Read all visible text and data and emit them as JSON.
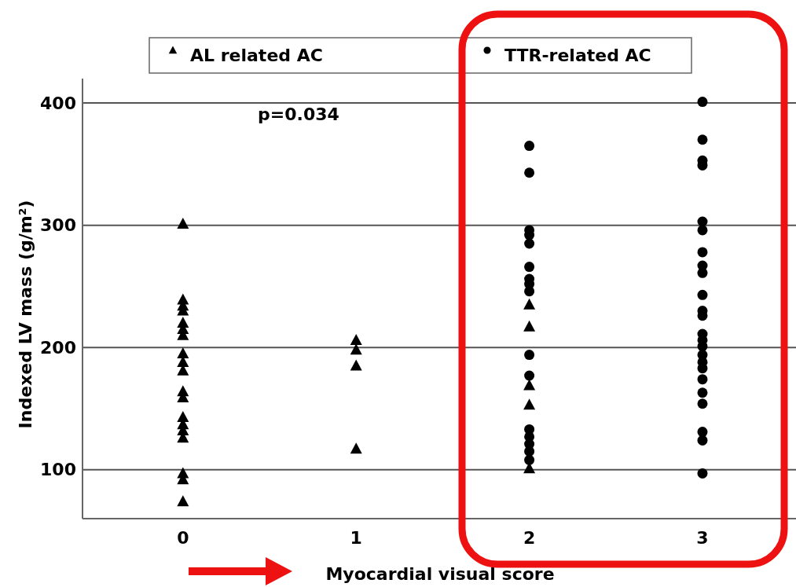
{
  "chart_data": {
    "type": "scatter",
    "xlabel": "Myocardial visual score",
    "ylabel": "Indexed LV mass (g/m²)",
    "xlim": [
      -0.58,
      3.54
    ],
    "xticks": [
      0,
      1,
      2,
      3
    ],
    "ylim": [
      60,
      420
    ],
    "yticks": [
      100,
      200,
      300,
      400
    ],
    "grid": "y",
    "legend": "top",
    "annotations": [
      "p=0.034"
    ],
    "series": [
      {
        "name": "AL related AC",
        "color": "#000000",
        "marker": "triangle",
        "x": [
          0,
          0,
          0,
          0,
          0,
          0,
          0,
          0,
          0,
          0,
          0,
          0,
          0,
          0,
          0,
          0,
          0,
          0,
          0,
          1,
          1,
          1,
          1,
          2,
          2,
          2,
          2,
          2
        ],
        "values": [
          301,
          239,
          234,
          230,
          220,
          215,
          210,
          195,
          188,
          181,
          164,
          159,
          143,
          137,
          132,
          126,
          97,
          92,
          74,
          206,
          198,
          185,
          117,
          235,
          217,
          169,
          153,
          101
        ]
      },
      {
        "name": "TTR-related AC",
        "color": "#000000",
        "marker": "circle",
        "x": [
          2,
          2,
          2,
          2,
          2,
          2,
          2,
          2,
          2,
          2,
          2,
          2,
          2,
          2,
          2,
          2,
          3,
          3,
          3,
          3,
          3,
          3,
          3,
          3,
          3,
          3,
          3,
          3,
          3,
          3,
          3,
          3,
          3,
          3,
          3,
          3,
          3,
          3,
          3,
          3
        ],
        "values": [
          365,
          343,
          296,
          292,
          285,
          266,
          256,
          252,
          246,
          194,
          177,
          133,
          127,
          121,
          115,
          108,
          401,
          370,
          353,
          349,
          303,
          296,
          278,
          267,
          261,
          243,
          230,
          226,
          211,
          206,
          201,
          194,
          188,
          183,
          174,
          163,
          154,
          131,
          124,
          97
        ]
      }
    ]
  }
}
